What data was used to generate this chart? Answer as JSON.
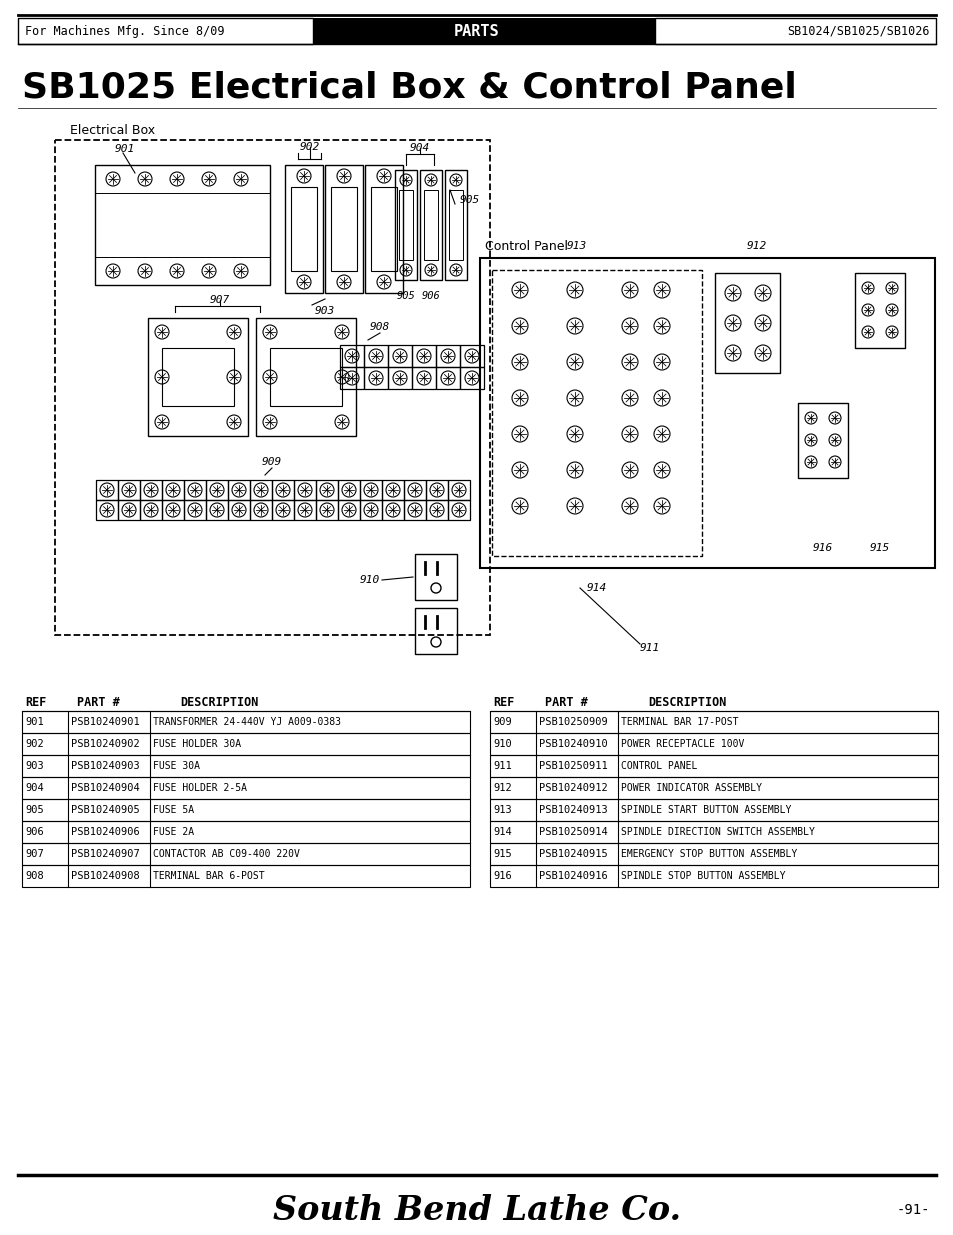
{
  "page_title": "SB1025 Electrical Box & Control Panel",
  "header_left": "For Machines Mfg. Since 8/09",
  "header_center": "PARTS",
  "header_right": "SB1024/SB1025/SB1026",
  "footer_text": "South Bend Lathe Co.",
  "page_number": "-91-",
  "electrical_box_label": "Electrical Box",
  "control_panel_label": "Control Panel",
  "table_left": [
    [
      "901",
      "PSB10240901",
      "TRANSFORMER 24-440V YJ A009-0383"
    ],
    [
      "902",
      "PSB10240902",
      "FUSE HOLDER 30A"
    ],
    [
      "903",
      "PSB10240903",
      "FUSE 30A"
    ],
    [
      "904",
      "PSB10240904",
      "FUSE HOLDER 2-5A"
    ],
    [
      "905",
      "PSB10240905",
      "FUSE 5A"
    ],
    [
      "906",
      "PSB10240906",
      "FUSE 2A"
    ],
    [
      "907",
      "PSB10240907",
      "CONTACTOR AB C09-400 220V"
    ],
    [
      "908",
      "PSB10240908",
      "TERMINAL BAR 6-POST"
    ]
  ],
  "table_right": [
    [
      "909",
      "PSB10250909",
      "TERMINAL BAR 17-POST"
    ],
    [
      "910",
      "PSB10240910",
      "POWER RECEPTACLE 100V"
    ],
    [
      "911",
      "PSB10250911",
      "CONTROL PANEL"
    ],
    [
      "912",
      "PSB10240912",
      "POWER INDICATOR ASSEMBLY"
    ],
    [
      "913",
      "PSB10240913",
      "SPINDLE START BUTTON ASSEMBLY"
    ],
    [
      "914",
      "PSB10250914",
      "SPINDLE DIRECTION SWITCH ASSEMBLY"
    ],
    [
      "915",
      "PSB10240915",
      "EMERGENCY STOP BUTTON ASSEMBLY"
    ],
    [
      "916",
      "PSB10240916",
      "SPINDLE STOP BUTTON ASSEMBLY"
    ]
  ],
  "bg_color": "#ffffff"
}
